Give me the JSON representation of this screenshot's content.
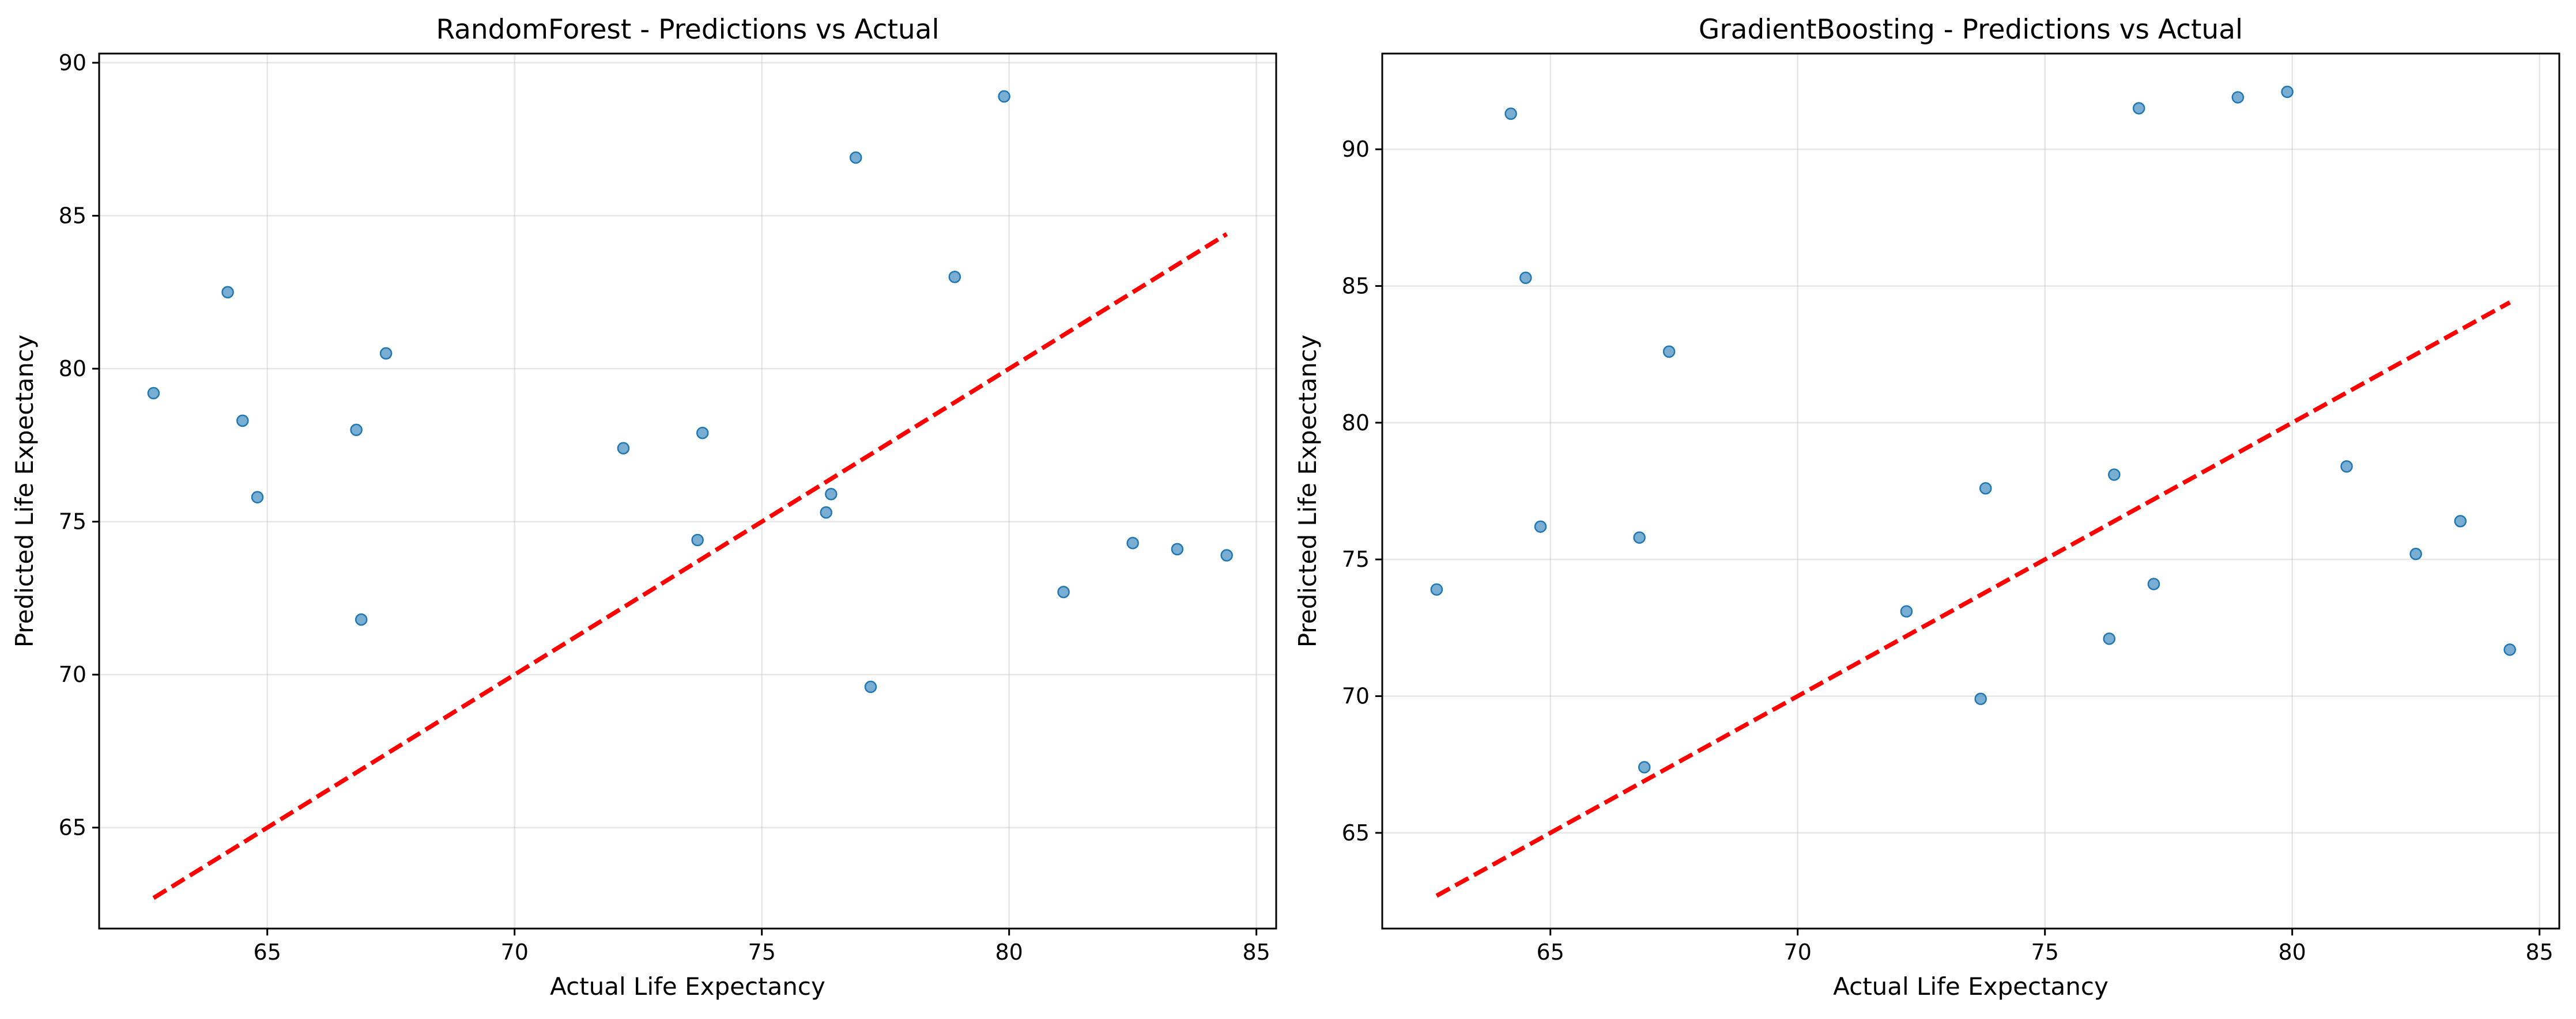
{
  "chart_data": [
    {
      "type": "scatter",
      "title": "RandomForest - Predictions vs Actual",
      "xlabel": "Actual Life Expectancy",
      "ylabel": "Predicted Life Expectancy",
      "xlim": [
        61.6,
        85.4
      ],
      "ylim": [
        61.7,
        90.3
      ],
      "xticks": [
        65,
        70,
        75,
        80,
        85
      ],
      "yticks": [
        65,
        70,
        75,
        80,
        85,
        90
      ],
      "grid": true,
      "point_color": "#1f77b4",
      "reference_line": {
        "label": "",
        "from": [
          62.7,
          62.7
        ],
        "to": [
          84.4,
          84.4
        ],
        "color": "#ff0000",
        "style": "dashed"
      },
      "points": {
        "x": [
          62.7,
          64.2,
          64.5,
          64.8,
          66.8,
          66.9,
          67.4,
          72.2,
          73.7,
          73.8,
          76.3,
          76.4,
          76.9,
          77.2,
          78.9,
          79.9,
          81.1,
          82.5,
          83.4,
          84.4
        ],
        "y": [
          79.2,
          82.5,
          78.3,
          75.8,
          78.0,
          71.8,
          80.5,
          77.4,
          74.4,
          77.9,
          75.3,
          75.9,
          86.9,
          69.6,
          83.0,
          88.9,
          72.7,
          74.3,
          74.1,
          73.9
        ]
      }
    },
    {
      "type": "scatter",
      "title": "GradientBoosting - Predictions vs Actual",
      "xlabel": "Actual Life Expectancy",
      "ylabel": "Predicted Life Expectancy",
      "xlim": [
        61.6,
        85.4
      ],
      "ylim": [
        61.5,
        93.5
      ],
      "xticks": [
        65,
        70,
        75,
        80,
        85
      ],
      "yticks": [
        65,
        70,
        75,
        80,
        85,
        90
      ],
      "grid": true,
      "point_color": "#1f77b4",
      "reference_line": {
        "label": "",
        "from": [
          62.7,
          62.7
        ],
        "to": [
          84.4,
          84.4
        ],
        "color": "#ff0000",
        "style": "dashed"
      },
      "points": {
        "x": [
          62.7,
          64.2,
          64.5,
          64.8,
          66.8,
          66.9,
          67.4,
          72.2,
          73.7,
          73.8,
          76.3,
          76.4,
          76.9,
          77.2,
          78.9,
          79.9,
          81.1,
          82.5,
          83.4,
          84.4
        ],
        "y": [
          73.9,
          91.3,
          85.3,
          76.2,
          75.8,
          67.4,
          82.6,
          73.1,
          69.9,
          77.6,
          72.1,
          78.1,
          91.5,
          74.1,
          91.9,
          92.1,
          78.4,
          75.2,
          76.4,
          71.7
        ]
      }
    }
  ]
}
